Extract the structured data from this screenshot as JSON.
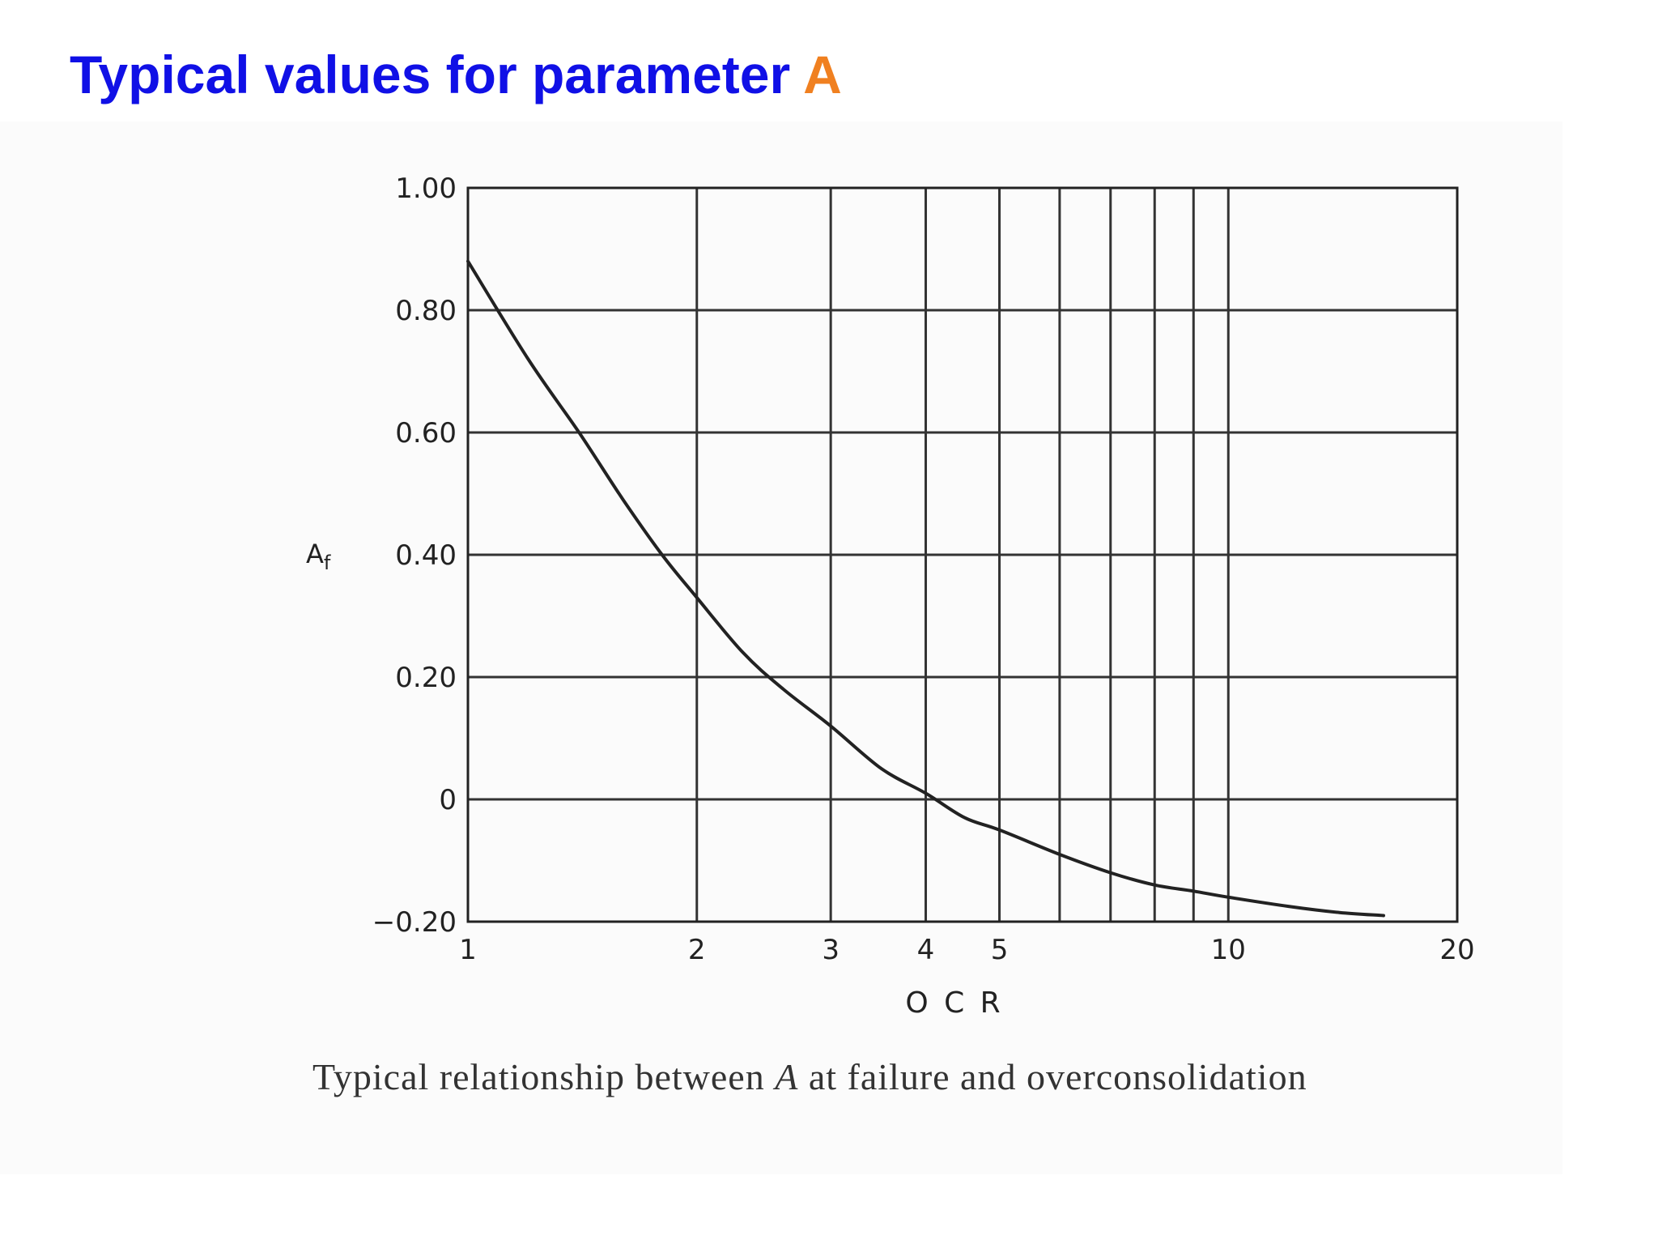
{
  "title": {
    "text": "Typical values for parameter ",
    "highlight": "A",
    "color": "#1010e6",
    "highlight_color": "#f08020"
  },
  "caption": {
    "prefix": "Typical relationship between ",
    "symbol": "A",
    "suffix": " at failure and overconsolidation"
  },
  "chart_data": {
    "type": "line",
    "xlabel": "O C R",
    "ylabel": "Af",
    "x_scale": "log",
    "xlim": [
      1,
      20
    ],
    "ylim": [
      -0.2,
      1.0
    ],
    "x_ticks": [
      {
        "value": 1,
        "label": "1"
      },
      {
        "value": 2,
        "label": "2"
      },
      {
        "value": 3,
        "label": "3"
      },
      {
        "value": 4,
        "label": "4"
      },
      {
        "value": 5,
        "label": "5"
      },
      {
        "value": 10,
        "label": "10"
      },
      {
        "value": 20,
        "label": "20"
      }
    ],
    "x_gridlines": [
      2,
      3,
      4,
      5,
      6,
      7,
      8,
      9,
      10
    ],
    "y_ticks": [
      {
        "value": 1.0,
        "label": "1.00"
      },
      {
        "value": 0.8,
        "label": "0.80"
      },
      {
        "value": 0.6,
        "label": "0.60"
      },
      {
        "value": 0.4,
        "label": "0.40"
      },
      {
        "value": 0.2,
        "label": "0.20"
      },
      {
        "value": 0,
        "label": "0"
      },
      {
        "value": -0.2,
        "label": "−0.20"
      }
    ],
    "grid": true,
    "series": [
      {
        "color": "#222222",
        "x": [
          1.0,
          1.2,
          1.4,
          1.6,
          1.8,
          2.0,
          2.3,
          2.6,
          3.0,
          3.5,
          4.0,
          4.5,
          5.0,
          6.0,
          7.0,
          8.0,
          9.0,
          10.0,
          12.0,
          14.0,
          16.0
        ],
        "y": [
          0.88,
          0.72,
          0.6,
          0.49,
          0.4,
          0.33,
          0.24,
          0.18,
          0.12,
          0.05,
          0.01,
          -0.03,
          -0.05,
          -0.09,
          -0.12,
          -0.14,
          -0.15,
          -0.16,
          -0.175,
          -0.185,
          -0.19
        ]
      }
    ]
  }
}
